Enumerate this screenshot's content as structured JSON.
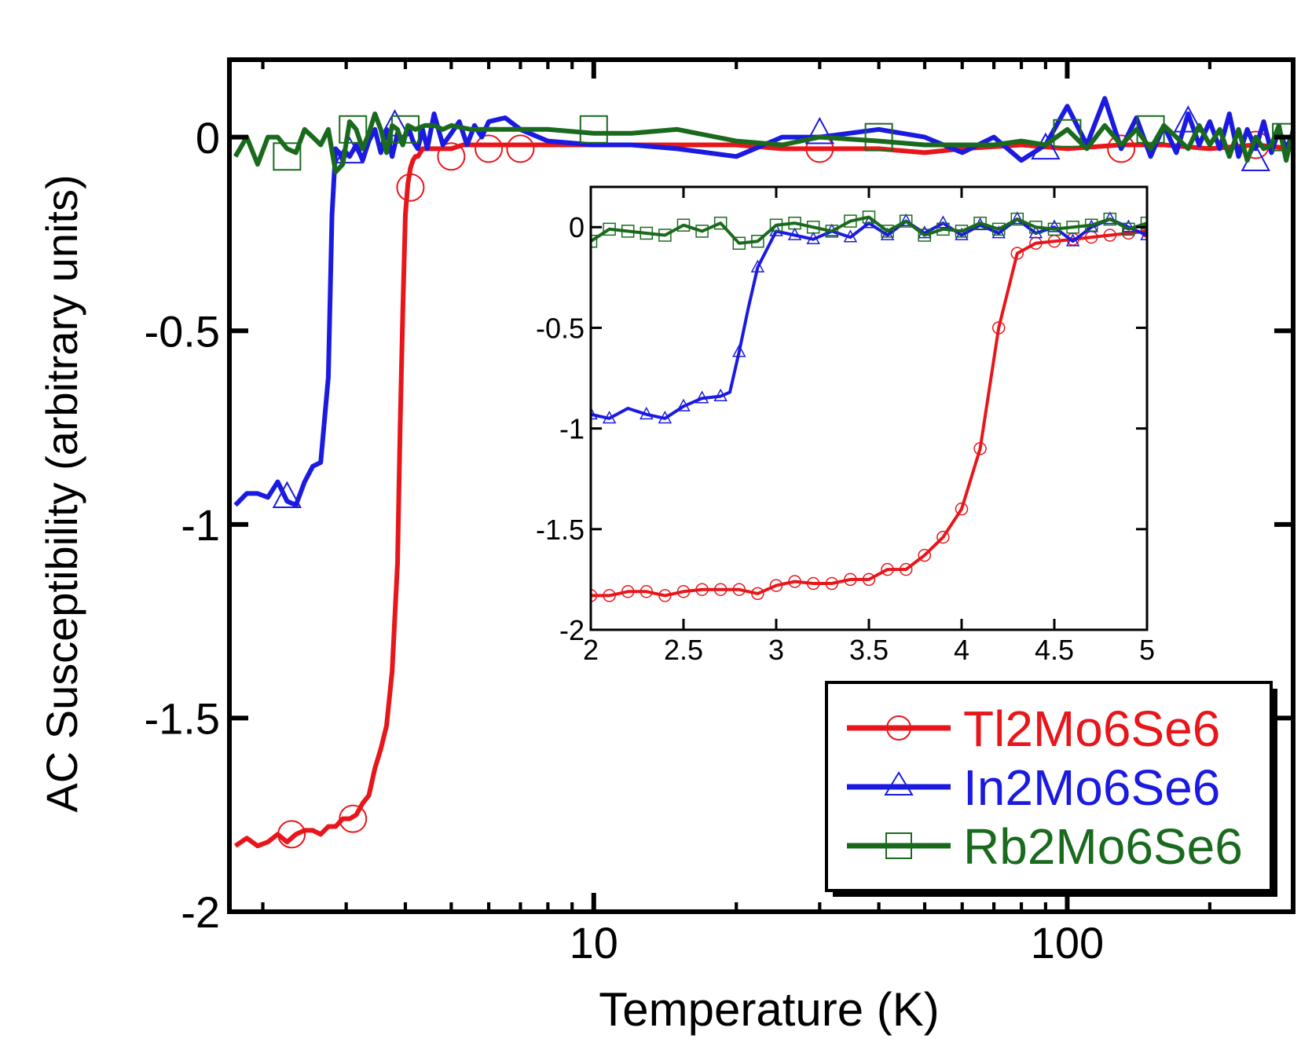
{
  "chart_data": [
    {
      "id": "main",
      "type": "line",
      "xscale": "log",
      "xlabel": "Temperature (K)",
      "ylabel": "AC Susceptibility (arbitrary units)",
      "xlim": [
        1.7,
        300
      ],
      "ylim": [
        -2,
        0.2
      ],
      "xticks": [
        {
          "v": 10,
          "label": "10"
        },
        {
          "v": 100,
          "label": "100"
        }
      ],
      "yticks": [
        {
          "v": 0,
          "label": "0"
        },
        {
          "v": -0.5,
          "label": "-0.5"
        },
        {
          "v": -1,
          "label": "-1"
        },
        {
          "v": -1.5,
          "label": "-1.5"
        },
        {
          "v": -2,
          "label": "-2"
        }
      ],
      "legend_position": "bottom-right",
      "series": [
        {
          "name": "Tl2Mo6Se6",
          "color": "#e8161b",
          "marker": "circle",
          "x": [
            1.75,
            1.85,
            1.95,
            2.05,
            2.15,
            2.25,
            2.35,
            2.45,
            2.55,
            2.65,
            2.75,
            2.85,
            2.95,
            3.05,
            3.15,
            3.25,
            3.35,
            3.45,
            3.55,
            3.65,
            3.75,
            3.85,
            3.9,
            3.95,
            4.0,
            4.05,
            4.1,
            4.15,
            4.2,
            4.25,
            4.3,
            4.35,
            4.45,
            4.6,
            4.8,
            5.0,
            5.3,
            5.7,
            6.2,
            7.0,
            8.0,
            10,
            12,
            15,
            20,
            25,
            30,
            40,
            50,
            60,
            80,
            100,
            130,
            160,
            200,
            250,
            300
          ],
          "y": [
            -1.83,
            -1.81,
            -1.83,
            -1.82,
            -1.8,
            -1.82,
            -1.8,
            -1.79,
            -1.79,
            -1.8,
            -1.78,
            -1.78,
            -1.76,
            -1.76,
            -1.75,
            -1.72,
            -1.7,
            -1.63,
            -1.58,
            -1.52,
            -1.38,
            -1.1,
            -0.75,
            -0.45,
            -0.2,
            -0.12,
            -0.08,
            -0.06,
            -0.05,
            -0.05,
            -0.04,
            -0.03,
            -0.03,
            -0.03,
            -0.03,
            -0.03,
            -0.02,
            -0.02,
            -0.02,
            -0.02,
            -0.02,
            -0.02,
            -0.02,
            -0.02,
            -0.02,
            -0.03,
            -0.03,
            -0.03,
            -0.04,
            -0.03,
            -0.02,
            -0.03,
            -0.02,
            -0.02,
            -0.03,
            -0.02,
            -0.03
          ],
          "marker_x": [
            2.3,
            3.1,
            4.1,
            5.0,
            6.0,
            7.0,
            30,
            130,
            250
          ],
          "marker_y": [
            -1.8,
            -1.76,
            -0.13,
            -0.05,
            -0.03,
            -0.03,
            -0.03,
            -0.03,
            -0.02
          ]
        },
        {
          "name": "In2Mo6Se6",
          "color": "#1a1ae0",
          "marker": "triangle",
          "x": [
            1.75,
            1.85,
            1.95,
            2.05,
            2.15,
            2.25,
            2.35,
            2.45,
            2.55,
            2.65,
            2.75,
            2.8,
            2.85,
            2.9,
            2.95,
            3.0,
            3.05,
            3.15,
            3.25,
            3.35,
            3.45,
            3.55,
            3.65,
            3.75,
            3.85,
            3.95,
            4.05,
            4.15,
            4.25,
            4.35,
            4.45,
            4.6,
            4.8,
            5.0,
            5.2,
            5.4,
            5.6,
            5.8,
            6.0,
            6.5,
            7.0,
            8.0,
            10,
            12,
            15,
            20,
            25,
            30,
            40,
            50,
            60,
            70,
            80,
            90,
            100,
            110,
            120,
            130,
            140,
            150,
            160,
            170,
            180,
            190,
            200,
            210,
            220,
            230,
            240,
            250,
            260,
            270,
            280,
            290,
            300
          ],
          "y": [
            -0.95,
            -0.92,
            -0.92,
            -0.93,
            -0.89,
            -0.94,
            -0.95,
            -0.89,
            -0.85,
            -0.84,
            -0.62,
            -0.2,
            -0.03,
            -0.04,
            -0.06,
            -0.04,
            -0.05,
            -0.02,
            -0.06,
            -0.01,
            0.02,
            -0.04,
            0.02,
            -0.05,
            0.01,
            -0.02,
            0.03,
            -0.01,
            -0.03,
            0.02,
            -0.03,
            0.06,
            -0.02,
            0.01,
            0.04,
            -0.02,
            0.03,
            0.0,
            0.04,
            0.05,
            0.02,
            -0.01,
            -0.02,
            -0.02,
            -0.03,
            -0.05,
            0.0,
            0.0,
            0.02,
            0.0,
            -0.04,
            0.0,
            -0.06,
            -0.02,
            0.08,
            -0.02,
            0.1,
            -0.03,
            0.05,
            -0.05,
            0.03,
            -0.04,
            0.06,
            -0.02,
            0.04,
            -0.03,
            0.06,
            -0.05,
            0.02,
            -0.03,
            0.04,
            -0.04,
            0.02,
            -0.03,
            0.01
          ],
          "marker_x": [
            2.25,
            3.05,
            3.8,
            30,
            90,
            180,
            250
          ],
          "marker_y": [
            -0.93,
            -0.04,
            0.03,
            0.01,
            -0.03,
            0.04,
            -0.06
          ]
        },
        {
          "name": "Rb2Mo6Se6",
          "color": "#1a6a1e",
          "marker": "square",
          "x": [
            1.75,
            1.85,
            1.95,
            2.05,
            2.15,
            2.25,
            2.35,
            2.45,
            2.55,
            2.65,
            2.75,
            2.85,
            2.95,
            3.05,
            3.15,
            3.25,
            3.35,
            3.45,
            3.55,
            3.65,
            3.75,
            3.85,
            3.95,
            4.05,
            4.2,
            4.4,
            4.6,
            4.8,
            5.0,
            5.5,
            6.0,
            7.0,
            8.0,
            10,
            12,
            15,
            20,
            25,
            30,
            40,
            50,
            60,
            70,
            80,
            90,
            100,
            110,
            120,
            130,
            140,
            150,
            160,
            170,
            180,
            190,
            200,
            210,
            220,
            230,
            240,
            250,
            260,
            270,
            280,
            290,
            300
          ],
          "y": [
            -0.05,
            0.0,
            -0.07,
            0.0,
            0.0,
            -0.03,
            -0.04,
            0.02,
            0.0,
            -0.02,
            0.02,
            -0.09,
            -0.07,
            0.04,
            0.02,
            -0.03,
            0.01,
            0.06,
            0.02,
            -0.04,
            0.03,
            0.02,
            -0.02,
            0.03,
            0.02,
            0.03,
            0.03,
            0.02,
            0.03,
            0.02,
            0.02,
            0.02,
            0.02,
            0.01,
            0.01,
            0.02,
            -0.01,
            -0.02,
            0.0,
            -0.01,
            -0.02,
            -0.02,
            -0.02,
            -0.01,
            -0.02,
            0.02,
            -0.03,
            0.03,
            -0.02,
            0.02,
            -0.03,
            0.03,
            0.0,
            -0.03,
            0.03,
            -0.02,
            0.02,
            -0.05,
            0.02,
            -0.06,
            0.0,
            -0.03,
            -0.02,
            0.03,
            -0.06,
            0.02
          ],
          "marker_x": [
            2.25,
            3.1,
            4.0,
            10,
            40,
            100,
            150,
            290
          ],
          "marker_y": [
            -0.05,
            0.02,
            0.02,
            0.02,
            0.0,
            0.01,
            0.02,
            0.0
          ]
        }
      ]
    },
    {
      "id": "inset",
      "type": "line",
      "xscale": "linear",
      "xlim": [
        2,
        5
      ],
      "ylim": [
        -2,
        0.2
      ],
      "xticks": [
        {
          "v": 2,
          "label": "2"
        },
        {
          "v": 2.5,
          "label": "2.5"
        },
        {
          "v": 3,
          "label": "3"
        },
        {
          "v": 3.5,
          "label": "3.5"
        },
        {
          "v": 4,
          "label": "4"
        },
        {
          "v": 4.5,
          "label": "4.5"
        },
        {
          "v": 5,
          "label": "5"
        }
      ],
      "yticks": [
        {
          "v": 0,
          "label": "0"
        },
        {
          "v": -0.5,
          "label": "-0.5"
        },
        {
          "v": -1,
          "label": "-1"
        },
        {
          "v": -1.5,
          "label": "-1.5"
        },
        {
          "v": -2,
          "label": "-2"
        }
      ],
      "series": [
        {
          "name": "Tl2Mo6Se6",
          "color": "#e8161b",
          "marker": "circle",
          "x": [
            2.0,
            2.1,
            2.2,
            2.3,
            2.4,
            2.5,
            2.6,
            2.7,
            2.8,
            2.9,
            3.0,
            3.1,
            3.2,
            3.3,
            3.4,
            3.5,
            3.6,
            3.7,
            3.8,
            3.9,
            4.0,
            4.1,
            4.2,
            4.3,
            4.4,
            4.5,
            4.6,
            4.7,
            4.8,
            4.9,
            5.0
          ],
          "y": [
            -1.83,
            -1.83,
            -1.81,
            -1.81,
            -1.83,
            -1.81,
            -1.8,
            -1.8,
            -1.8,
            -1.82,
            -1.78,
            -1.76,
            -1.77,
            -1.77,
            -1.75,
            -1.75,
            -1.7,
            -1.7,
            -1.63,
            -1.54,
            -1.4,
            -1.1,
            -0.5,
            -0.13,
            -0.08,
            -0.07,
            -0.06,
            -0.05,
            -0.04,
            -0.03,
            -0.02
          ],
          "marker_x": [
            2.0,
            2.1,
            2.2,
            2.3,
            2.4,
            2.5,
            2.6,
            2.7,
            2.8,
            2.9,
            3.0,
            3.1,
            3.2,
            3.3,
            3.4,
            3.5,
            3.6,
            3.7,
            3.8,
            3.9,
            4.0,
            4.1,
            4.2,
            4.3,
            4.4,
            4.5,
            4.6,
            4.7,
            4.8,
            4.9,
            5.0
          ],
          "marker_y": [
            -1.83,
            -1.83,
            -1.81,
            -1.81,
            -1.83,
            -1.81,
            -1.8,
            -1.8,
            -1.8,
            -1.82,
            -1.78,
            -1.76,
            -1.77,
            -1.77,
            -1.75,
            -1.75,
            -1.7,
            -1.7,
            -1.63,
            -1.54,
            -1.4,
            -1.1,
            -0.5,
            -0.13,
            -0.08,
            -0.07,
            -0.06,
            -0.05,
            -0.04,
            -0.03,
            -0.02
          ]
        },
        {
          "name": "In2Mo6Se6",
          "color": "#1a1ae0",
          "marker": "triangle",
          "x": [
            2.0,
            2.1,
            2.2,
            2.3,
            2.4,
            2.5,
            2.6,
            2.7,
            2.75,
            2.8,
            2.85,
            2.9,
            3.0,
            3.1,
            3.2,
            3.3,
            3.4,
            3.5,
            3.6,
            3.7,
            3.8,
            3.9,
            4.0,
            4.1,
            4.2,
            4.3,
            4.4,
            4.5,
            4.6,
            4.7,
            4.8,
            4.9,
            5.0
          ],
          "y": [
            -0.93,
            -0.95,
            -0.9,
            -0.93,
            -0.95,
            -0.89,
            -0.85,
            -0.84,
            -0.82,
            -0.62,
            -0.4,
            -0.2,
            -0.02,
            -0.04,
            -0.06,
            -0.02,
            -0.05,
            0.02,
            -0.04,
            0.03,
            -0.03,
            0.02,
            -0.04,
            0.01,
            -0.03,
            0.04,
            -0.03,
            0.0,
            -0.07,
            0.0,
            0.04,
            0.0,
            -0.04
          ],
          "marker_x": [
            2.0,
            2.1,
            2.3,
            2.4,
            2.5,
            2.6,
            2.7,
            2.8,
            2.9,
            3.0,
            3.1,
            3.2,
            3.3,
            3.4,
            3.5,
            3.6,
            3.7,
            3.8,
            3.9,
            4.0,
            4.1,
            4.2,
            4.3,
            4.4,
            4.5,
            4.6,
            4.7,
            4.8,
            4.9,
            5.0
          ],
          "marker_y": [
            -0.93,
            -0.95,
            -0.93,
            -0.95,
            -0.89,
            -0.85,
            -0.84,
            -0.62,
            -0.2,
            -0.02,
            -0.04,
            -0.06,
            -0.02,
            -0.05,
            0.02,
            -0.04,
            0.03,
            -0.03,
            0.02,
            -0.04,
            0.01,
            -0.03,
            0.04,
            -0.03,
            0.0,
            -0.07,
            0.0,
            0.04,
            0.0,
            -0.04
          ]
        },
        {
          "name": "Rb2Mo6Se6",
          "color": "#1a6a1e",
          "marker": "square",
          "x": [
            2.0,
            2.1,
            2.2,
            2.3,
            2.4,
            2.5,
            2.6,
            2.7,
            2.8,
            2.9,
            3.0,
            3.1,
            3.2,
            3.3,
            3.4,
            3.5,
            3.6,
            3.7,
            3.8,
            3.9,
            4.0,
            4.1,
            4.2,
            4.3,
            4.4,
            4.5,
            4.6,
            4.7,
            4.8,
            4.9,
            5.0
          ],
          "y": [
            -0.07,
            -0.01,
            -0.02,
            -0.03,
            -0.04,
            0.01,
            -0.02,
            0.02,
            -0.08,
            -0.07,
            0.01,
            0.02,
            0.0,
            -0.02,
            0.03,
            0.05,
            -0.02,
            0.03,
            -0.04,
            -0.01,
            -0.02,
            0.02,
            -0.01,
            0.04,
            0.0,
            -0.01,
            0.0,
            0.01,
            0.04,
            -0.01,
            0.02
          ],
          "marker_x": [
            2.0,
            2.1,
            2.2,
            2.3,
            2.4,
            2.5,
            2.6,
            2.7,
            2.8,
            2.9,
            3.0,
            3.1,
            3.2,
            3.3,
            3.4,
            3.5,
            3.6,
            3.7,
            3.8,
            3.9,
            4.0,
            4.1,
            4.2,
            4.3,
            4.4,
            4.5,
            4.6,
            4.7,
            4.8,
            4.9,
            5.0
          ],
          "marker_y": [
            -0.07,
            -0.01,
            -0.02,
            -0.03,
            -0.04,
            0.01,
            -0.02,
            0.02,
            -0.08,
            -0.07,
            0.01,
            0.02,
            0.0,
            -0.02,
            0.03,
            0.05,
            -0.02,
            0.03,
            -0.04,
            -0.01,
            -0.02,
            0.02,
            -0.01,
            0.04,
            0.0,
            -0.01,
            0.0,
            0.01,
            0.04,
            -0.01,
            0.02
          ]
        }
      ]
    }
  ]
}
